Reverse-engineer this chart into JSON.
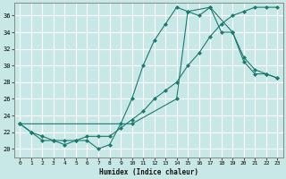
{
  "xlabel": "Humidex (Indice chaleur)",
  "bg_color": "#c8e8e8",
  "grid_color": "#ffffff",
  "line_color": "#1a7a6e",
  "xlim": [
    -0.5,
    23.5
  ],
  "ylim": [
    19.0,
    37.5
  ],
  "yticks": [
    20,
    22,
    24,
    26,
    28,
    30,
    32,
    34,
    36
  ],
  "xticks": [
    0,
    1,
    2,
    3,
    4,
    5,
    6,
    7,
    8,
    9,
    10,
    11,
    12,
    13,
    14,
    15,
    16,
    17,
    18,
    19,
    20,
    21,
    22,
    23
  ],
  "line1_x": [
    0,
    1,
    2,
    3,
    4,
    5,
    6,
    7,
    8,
    9,
    10,
    11,
    12,
    13,
    14,
    15,
    16,
    17,
    18,
    19,
    20,
    21,
    22,
    23
  ],
  "line1_y": [
    23.0,
    22.0,
    21.5,
    21.0,
    20.5,
    21.0,
    21.0,
    20.0,
    20.5,
    23.0,
    26.0,
    30.0,
    33.0,
    35.0,
    37.0,
    36.5,
    36.0,
    37.0,
    34.0,
    34.0,
    30.5,
    29.0,
    29.0,
    28.5
  ],
  "line2_x": [
    0,
    10,
    14,
    15,
    17,
    19,
    20,
    21,
    22,
    23
  ],
  "line2_y": [
    23.0,
    23.0,
    26.0,
    36.5,
    37.0,
    34.0,
    31.0,
    29.5,
    29.0,
    28.5
  ],
  "line3_x": [
    0,
    1,
    2,
    3,
    4,
    5,
    6,
    7,
    8,
    9,
    10,
    11,
    12,
    13,
    14,
    15,
    16,
    17,
    18,
    19,
    20,
    21,
    22,
    23
  ],
  "line3_y": [
    23.0,
    22.0,
    21.0,
    21.0,
    21.0,
    21.0,
    21.5,
    21.5,
    21.5,
    22.5,
    23.5,
    24.5,
    26.0,
    27.0,
    28.0,
    30.0,
    31.5,
    33.5,
    35.0,
    36.0,
    36.5,
    37.0,
    37.0,
    37.0
  ]
}
